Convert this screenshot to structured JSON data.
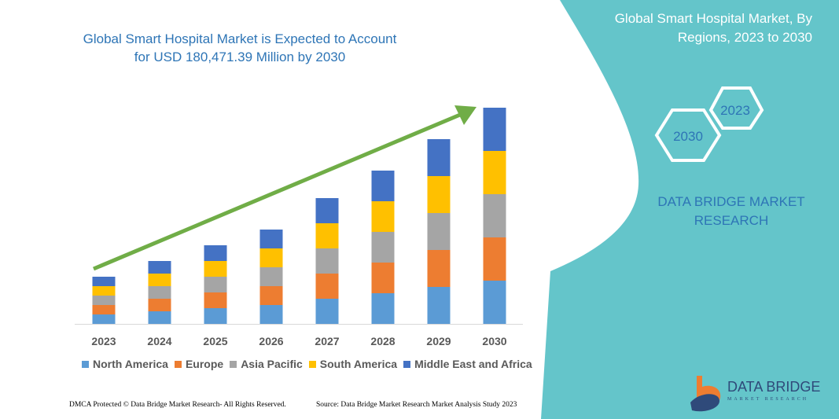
{
  "chart_data": {
    "type": "bar",
    "stacked": true,
    "title": "Global Smart Hospital Market is Expected to Account for USD 180,471.39 Million by 2030",
    "categories": [
      "2023",
      "2024",
      "2025",
      "2026",
      "2027",
      "2028",
      "2029",
      "2030"
    ],
    "series": [
      {
        "name": "North America",
        "color": "#5b9bd5",
        "values": [
          12,
          16,
          20,
          24,
          32,
          39,
          47,
          55
        ]
      },
      {
        "name": "Europe",
        "color": "#ed7d31",
        "values": [
          12,
          16,
          20,
          24,
          32,
          39,
          47,
          55
        ]
      },
      {
        "name": "Asia Pacific",
        "color": "#a5a5a5",
        "values": [
          12,
          16,
          20,
          24,
          32,
          39,
          47,
          55
        ]
      },
      {
        "name": "South America",
        "color": "#ffc000",
        "values": [
          12,
          16,
          20,
          24,
          32,
          39,
          47,
          55
        ]
      },
      {
        "name": "Middle East and Africa",
        "color": "#4472c4",
        "values": [
          12,
          16,
          20,
          24,
          32,
          39,
          47,
          55
        ]
      }
    ],
    "ylim": [
      0,
      280
    ],
    "grid": false,
    "y_axis_shown": false,
    "legend_position": "bottom",
    "trend_arrow_color": "#70ad47"
  },
  "side_panel": {
    "title": "Global Smart Hospital Market, By Regions, 2023 to 2030",
    "hex_start": "2023",
    "hex_end": "2030",
    "brand": "DATA BRIDGE MARKET RESEARCH",
    "color": "#64c5ca"
  },
  "footer": {
    "left": "DMCA Protected © Data Bridge Market Research-  All Rights Reserved.",
    "right": "Source: Data Bridge Market Research  Market Analysis Study 2023"
  },
  "logo": {
    "name": "DATA BRIDGE",
    "sub": "MARKET RESEARCH"
  }
}
